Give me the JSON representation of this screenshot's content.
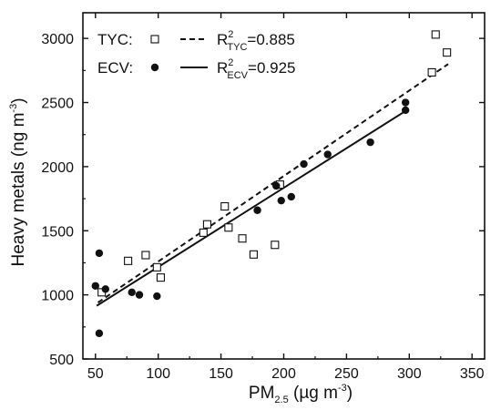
{
  "chart_data": {
    "type": "scatter",
    "xlabel": {
      "main": "PM",
      "sub": "2.5",
      "unit_open": " (",
      "unit": "µg m",
      "unit_sup": "-3",
      "unit_close": ")"
    },
    "ylabel": {
      "main": "Heavy metals (ng m",
      "sup": "-3",
      "close": ")"
    },
    "xlim": [
      40,
      360
    ],
    "ylim": [
      500,
      3200
    ],
    "xticks": [
      50,
      100,
      150,
      200,
      250,
      300,
      350
    ],
    "yticks": [
      500,
      1000,
      1500,
      2000,
      2500,
      3000
    ],
    "grid": false,
    "legend_position": "top-left",
    "series": [
      {
        "name": "TYC",
        "marker": "open-square",
        "color": "#111111",
        "fit_line_style": "dashed",
        "r2_label": {
          "prefix": "R",
          "sup": "2",
          "sub": "TYC",
          "value": "=0.885"
        },
        "fit_x": [
          52,
          331
        ],
        "fit_y": [
          940,
          2800
        ],
        "points": [
          [
            55,
            1020
          ],
          [
            76,
            1265
          ],
          [
            90,
            1310
          ],
          [
            99,
            1215
          ],
          [
            102,
            1135
          ],
          [
            136,
            1485
          ],
          [
            139,
            1550
          ],
          [
            153,
            1690
          ],
          [
            156,
            1525
          ],
          [
            167,
            1440
          ],
          [
            176,
            1315
          ],
          [
            193,
            1390
          ],
          [
            197,
            1860
          ],
          [
            318,
            2735
          ],
          [
            321,
            3030
          ],
          [
            330,
            2890
          ]
        ]
      },
      {
        "name": "ECV",
        "marker": "filled-circle",
        "color": "#111111",
        "fit_line_style": "solid",
        "r2_label": {
          "prefix": "R",
          "sup": "2",
          "sub": "ECV",
          "value": "=0.925"
        },
        "fit_x": [
          51,
          298
        ],
        "fit_y": [
          915,
          2440
        ],
        "points": [
          [
            50,
            1070
          ],
          [
            53,
            700
          ],
          [
            53,
            1325
          ],
          [
            58,
            1045
          ],
          [
            79,
            1020
          ],
          [
            85,
            1000
          ],
          [
            99,
            990
          ],
          [
            179,
            1660
          ],
          [
            194,
            1850
          ],
          [
            198,
            1735
          ],
          [
            206,
            1765
          ],
          [
            216,
            2020
          ],
          [
            235,
            2095
          ],
          [
            269,
            2190
          ],
          [
            297,
            2440
          ],
          [
            297,
            2500
          ]
        ]
      }
    ]
  }
}
